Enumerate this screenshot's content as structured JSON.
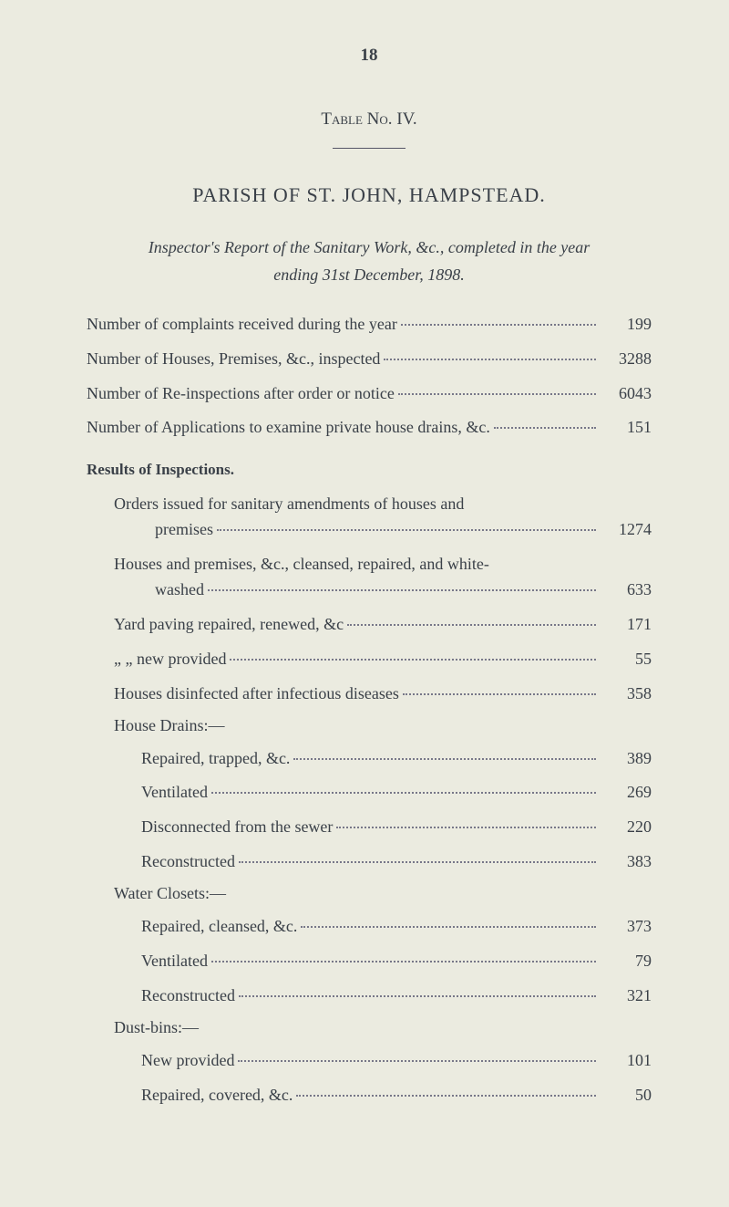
{
  "page_number": "18",
  "table_title": "Table No. IV.",
  "parish_title": "PARISH OF ST. JOHN, HAMPSTEAD.",
  "subtitle_prefix": "Inspector's Report of the Sanitary Work, &c., completed in the year",
  "subtitle_line2": "ending 31st December, 1898.",
  "top_entries": [
    {
      "label": "Number of complaints received during the year",
      "value": "199"
    },
    {
      "label": "Number of Houses, Premises, &c., inspected",
      "value": "3288"
    },
    {
      "label": "Number of Re-inspections after order or notice",
      "value": "6043"
    },
    {
      "label": "Number of Applications to examine private house drains, &c.",
      "value": "151"
    }
  ],
  "results_heading": "Results of Inspections.",
  "results_multiline": [
    {
      "line1": "Orders issued for sanitary amendments of houses and",
      "line2": "premises",
      "value": "1274"
    },
    {
      "line1": "Houses and premises, &c., cleansed, repaired, and white-",
      "line2": "washed",
      "value": "633"
    }
  ],
  "results_entries": [
    {
      "label": "Yard paving repaired, renewed, &c",
      "value": "171"
    },
    {
      "label": "„ „ new provided",
      "value": "55"
    },
    {
      "label": "Houses disinfected after infectious diseases",
      "value": "358"
    }
  ],
  "house_drains_heading": "House Drains:—",
  "house_drains_entries": [
    {
      "label": "Repaired, trapped, &c.",
      "value": "389"
    },
    {
      "label": "Ventilated",
      "value": "269"
    },
    {
      "label": "Disconnected from the sewer",
      "value": "220"
    },
    {
      "label": "Reconstructed",
      "value": "383"
    }
  ],
  "water_closets_heading": "Water Closets:—",
  "water_closets_entries": [
    {
      "label": "Repaired, cleansed, &c.",
      "value": "373"
    },
    {
      "label": "Ventilated",
      "value": "79"
    },
    {
      "label": "Reconstructed",
      "value": "321"
    }
  ],
  "dust_bins_heading": "Dust-bins:—",
  "dust_bins_entries": [
    {
      "label": "New provided",
      "value": "101"
    },
    {
      "label": "Repaired, covered, &c.",
      "value": "50"
    }
  ],
  "colors": {
    "background": "#ebebe0",
    "text": "#3a4048"
  },
  "typography": {
    "body_fontsize": 18,
    "heading_fontsize": 22,
    "page_num_fontsize": 19
  }
}
